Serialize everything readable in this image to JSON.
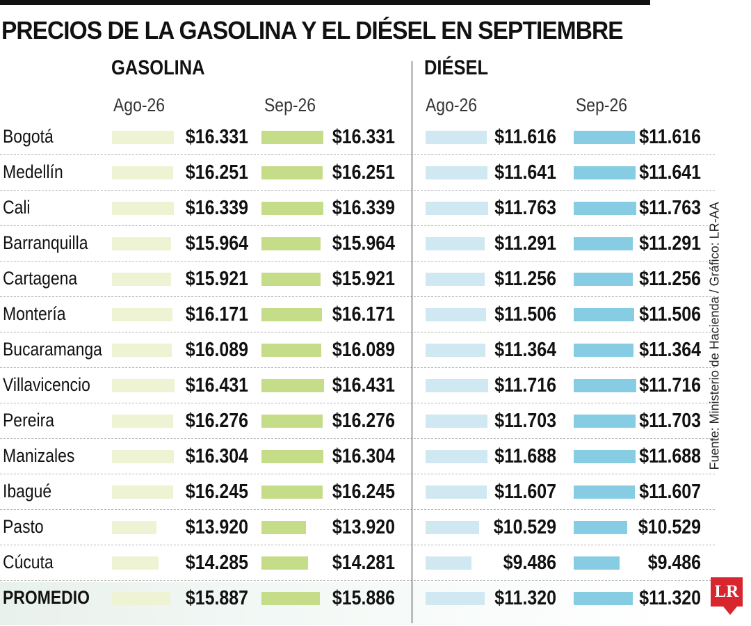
{
  "title": "PRECIOS DE LA GASOLINA Y EL DIÉSEL EN SEPTIEMBRE",
  "source": "Fuente: Ministerio de Hacienda / Gráfico: LR-AA",
  "logo": "LR",
  "colors": {
    "gas_ago": "#eef3d4",
    "gas_sep": "#c5dc89",
    "die_ago": "#cfe8f2",
    "die_sep": "#86cde4",
    "logo": "#d8262e"
  },
  "chart_data": {
    "type": "bar",
    "title": "PRECIOS DE LA GASOLINA Y EL DIÉSEL EN SEPTIEMBRE",
    "groups": [
      "GASOLINA",
      "DIÉSEL"
    ],
    "periods": [
      "Ago-26",
      "Sep-26"
    ],
    "categories": [
      "Bogotá",
      "Medellín",
      "Cali",
      "Barranquilla",
      "Cartagena",
      "Montería",
      "Bucaramanga",
      "Villavicencio",
      "Pereira",
      "Manizales",
      "Ibagué",
      "Pasto",
      "Cúcuta",
      "PROMEDIO"
    ],
    "series": [
      {
        "name": "GASOLINA Ago-26",
        "values": [
          16331,
          16251,
          16339,
          15964,
          15921,
          16171,
          16089,
          16431,
          16276,
          16304,
          16245,
          13920,
          14285,
          15887
        ],
        "labels": [
          "$16.331",
          "$16.251",
          "$16.339",
          "$15.964",
          "$15.921",
          "$16.171",
          "$16.089",
          "$16.431",
          "$16.276",
          "$16.304",
          "$16.245",
          "$13.920",
          "$14.285",
          "$15.887"
        ]
      },
      {
        "name": "GASOLINA Sep-26",
        "values": [
          16331,
          16251,
          16339,
          15964,
          15921,
          16171,
          16089,
          16431,
          16276,
          16304,
          16245,
          13920,
          14281,
          15886
        ],
        "labels": [
          "$16.331",
          "$16.251",
          "$16.339",
          "$15.964",
          "$15.921",
          "$16.171",
          "$16.089",
          "$16.431",
          "$16.276",
          "$16.304",
          "$16.245",
          "$13.920",
          "$14.281",
          "$15.886"
        ]
      },
      {
        "name": "DIÉSEL Ago-26",
        "values": [
          11616,
          11641,
          11763,
          11291,
          11256,
          11506,
          11364,
          11716,
          11703,
          11688,
          11607,
          10529,
          9486,
          11320
        ],
        "labels": [
          "$11.616",
          "$11.641",
          "$11.763",
          "$11.291",
          "$11.256",
          "$11.506",
          "$11.364",
          "$11.716",
          "$11.703",
          "$11.688",
          "$11.607",
          "$10.529",
          "$9.486",
          "$11.320"
        ]
      },
      {
        "name": "DIÉSEL Sep-26",
        "values": [
          11616,
          11641,
          11763,
          11291,
          11256,
          11506,
          11364,
          11716,
          11703,
          11688,
          11607,
          10529,
          9486,
          11320
        ],
        "labels": [
          "$11.616",
          "$11.641",
          "$11.763",
          "$11.291",
          "$11.256",
          "$11.506",
          "$11.364",
          "$11.716",
          "$11.703",
          "$11.688",
          "$11.607",
          "$10.529",
          "$9.486",
          "$11.320"
        ]
      }
    ]
  }
}
